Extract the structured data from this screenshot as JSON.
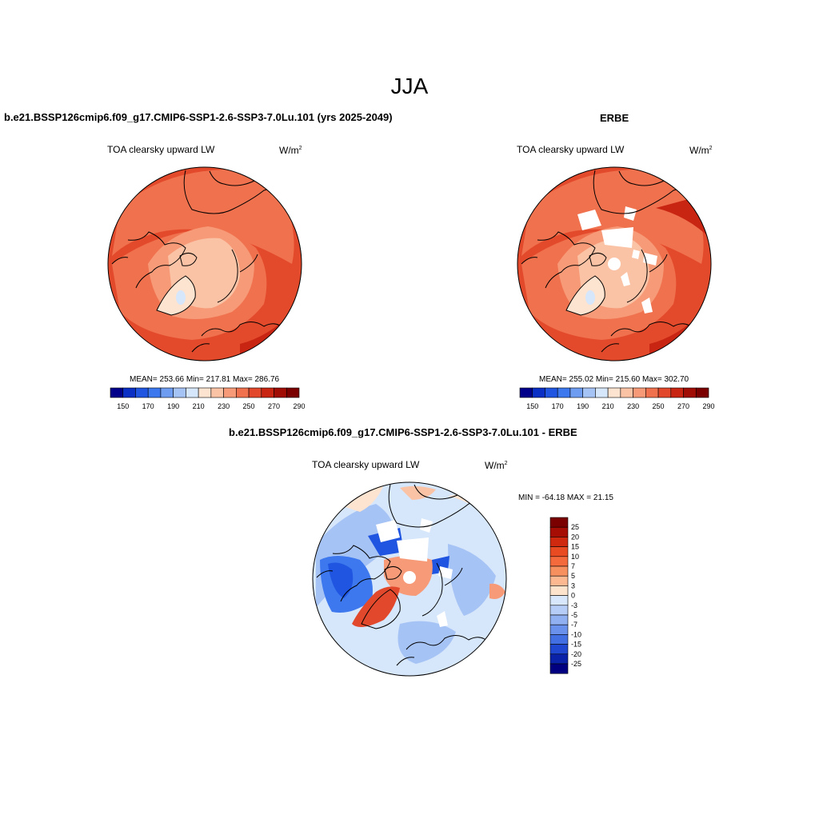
{
  "figure": {
    "season": "JJA",
    "panel_top_left": {
      "title": "b.e21.BSSP126cmip6.f09_g17.CMIP6-SSP1-2.6-SSP3-7.0Lu.101 (yrs 2025-2049)",
      "left_label": "TOA clearsky upward LW",
      "units_base": "W/m",
      "units_exp": "2",
      "stats": "MEAN= 253.66  Min= 217.81  Max= 286.76"
    },
    "panel_top_right": {
      "title": "ERBE",
      "left_label": "TOA clearsky upward LW",
      "units_base": "W/m",
      "units_exp": "2",
      "stats": "MEAN= 255.02  Min= 215.60  Max= 302.70"
    },
    "panel_bottom": {
      "title": "b.e21.BSSP126cmip6.f09_g17.CMIP6-SSP1-2.6-SSP3-7.0Lu.101 - ERBE",
      "left_label": "TOA clearsky upward LW",
      "units_base": "W/m",
      "units_exp": "2",
      "stats": "MIN = -64.18 MAX =  21.15"
    }
  },
  "colorbar_horizontal": {
    "colors": [
      "#00008a",
      "#0a2fc4",
      "#1f55e0",
      "#3d78ee",
      "#6e9cf0",
      "#a6c3f5",
      "#d6e6fb",
      "#fde4d1",
      "#fbc3a6",
      "#f79a78",
      "#f0714e",
      "#e2482b",
      "#c82512",
      "#a00d05",
      "#7a0000"
    ],
    "labels": [
      "150",
      "170",
      "190",
      "210",
      "230",
      "250",
      "270",
      "290"
    ]
  },
  "colorbar_vertical": {
    "colors_top_to_bottom": [
      "#7a0000",
      "#a50d05",
      "#cf2a10",
      "#e84a22",
      "#f56a3c",
      "#f7905f",
      "#fbb891",
      "#fde3cc",
      "#d8e7fb",
      "#b6cdf7",
      "#90b0f2",
      "#6a91ec",
      "#4270e3",
      "#2047cf",
      "#0a22a8",
      "#000080"
    ],
    "labels": [
      "25",
      "20",
      "15",
      "10",
      "7",
      "5",
      "3",
      "0",
      "-3",
      "-5",
      "-7",
      "-10",
      "-15",
      "-20",
      "-25"
    ]
  }
}
